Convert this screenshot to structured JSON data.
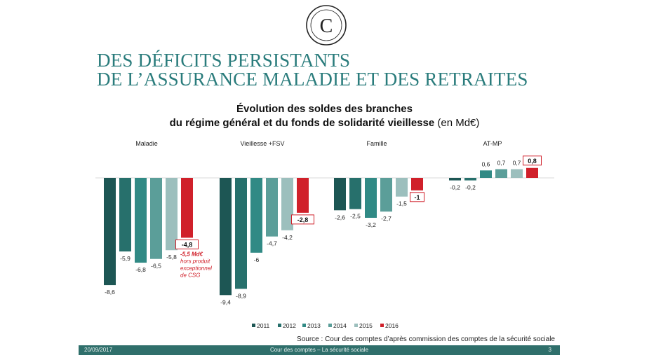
{
  "slide": {
    "title_line1": "DES DÉFICITS PERSISTANTS",
    "title_line2": "DE L’ASSURANCE MALADIE ET DES RETRAITES",
    "logo_letter": "C",
    "source": "Source : Cour des comptes d’après commission des comptes de la sécurité sociale",
    "footer_date": "20/09/2017",
    "footer_center": "Cour des comptes – La sécurité sociale",
    "footer_page": "3"
  },
  "chart_data": {
    "type": "bar",
    "title_line1": "Évolution des soldes des branches",
    "title_line2_bold": "du régime général et du fonds de solidarité vieillesse",
    "title_line2_normal": " (en Md€)",
    "legend_position": "bottom",
    "categories": [
      "Maladie",
      "Vieillesse +FSV",
      "Famille",
      "AT-MP"
    ],
    "series": [
      {
        "name": "2011",
        "color": "#1d5654",
        "values": [
          -8.6,
          -9.4,
          -2.6,
          -0.2
        ],
        "labels": [
          "-8,6",
          "-9,4",
          "-2,6",
          "-0,2"
        ]
      },
      {
        "name": "2012",
        "color": "#27706c",
        "values": [
          -5.9,
          -8.9,
          -2.5,
          -0.2
        ],
        "labels": [
          "-5,9",
          "-8,9",
          "-2,5",
          "-0,2"
        ]
      },
      {
        "name": "2013",
        "color": "#318a85",
        "values": [
          -6.8,
          -6.0,
          -3.2,
          0.6
        ],
        "labels": [
          "-6,8",
          "-6",
          "-3,2",
          "0,6"
        ]
      },
      {
        "name": "2014",
        "color": "#5b9e99",
        "values": [
          -6.5,
          -4.7,
          -2.7,
          0.7
        ],
        "labels": [
          "-6,5",
          "-4,7",
          "-2,7",
          "0,7"
        ]
      },
      {
        "name": "2015",
        "color": "#9cbfbd",
        "values": [
          -5.8,
          -4.2,
          -1.5,
          0.7
        ],
        "labels": [
          "-5,8",
          "-4,2",
          "-1,5",
          "0,7"
        ]
      },
      {
        "name": "2016",
        "color": "#d0202a",
        "values": [
          -4.8,
          -2.8,
          -1.0,
          0.8
        ],
        "labels": [
          "-4,8",
          "-2,8",
          "-1",
          "0,8"
        ],
        "boxed": true
      }
    ],
    "annotation": {
      "category": "Maladie",
      "series": "2016",
      "lines": [
        "-5,5 Md€",
        "hors produit",
        "exceptionnel",
        "de CSG"
      ]
    }
  }
}
